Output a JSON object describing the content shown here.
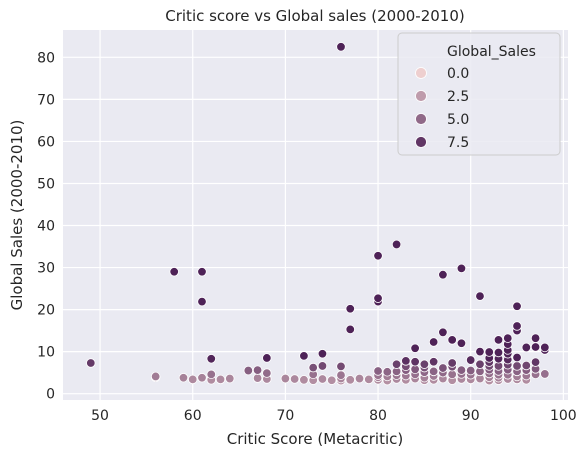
{
  "chart_data": {
    "type": "scatter",
    "title": "Critic score vs Global sales (2000-2010)",
    "xlabel": "Critic Score (Metacritic)",
    "ylabel": "Global Sales (2000-2010)",
    "xlim": [
      46,
      100.5
    ],
    "ylim": [
      -1.5,
      86.5
    ],
    "xticks": [
      50,
      60,
      70,
      80,
      90,
      100
    ],
    "yticks": [
      0,
      10,
      20,
      30,
      40,
      50,
      60,
      70,
      80
    ],
    "grid": true,
    "hue_variable": "Global_Sales",
    "hue_range": [
      0,
      8.5
    ],
    "palette": {
      "light": "#eecfcf",
      "dark": "#4e2257"
    },
    "legend": {
      "title": "Global_Sales",
      "placement": "top-right",
      "entries": [
        {
          "label": "0.0",
          "value": 0.0
        },
        {
          "label": "2.5",
          "value": 2.5
        },
        {
          "label": "5.0",
          "value": 5.0
        },
        {
          "label": "7.5",
          "value": 7.5
        }
      ]
    },
    "points": [
      [
        49,
        7.3
      ],
      [
        56,
        4.1
      ],
      [
        56,
        3.9
      ],
      [
        59,
        3.8
      ],
      [
        60,
        3.4
      ],
      [
        61,
        29.0
      ],
      [
        61,
        3.8
      ],
      [
        62,
        4.6
      ],
      [
        62,
        3.3
      ],
      [
        63,
        3.4
      ],
      [
        64,
        3.6
      ],
      [
        58,
        29.0
      ],
      [
        61,
        21.9
      ],
      [
        62,
        8.3
      ],
      [
        66,
        5.5
      ],
      [
        67,
        5.6
      ],
      [
        67,
        3.7
      ],
      [
        68,
        4.9
      ],
      [
        68,
        8.5
      ],
      [
        68,
        3.5
      ],
      [
        70,
        3.6
      ],
      [
        71,
        3.5
      ],
      [
        72,
        9.0
      ],
      [
        72,
        3.3
      ],
      [
        73,
        6.2
      ],
      [
        73,
        4.6
      ],
      [
        73,
        3.2
      ],
      [
        74,
        9.5
      ],
      [
        74,
        6.6
      ],
      [
        74,
        3.5
      ],
      [
        75,
        3.2
      ],
      [
        76,
        82.5
      ],
      [
        76,
        6.5
      ],
      [
        76,
        4.4
      ],
      [
        76,
        3.6
      ],
      [
        76,
        3.1
      ],
      [
        77,
        20.2
      ],
      [
        77,
        15.3
      ],
      [
        77,
        3.3
      ],
      [
        78,
        3.6
      ],
      [
        79,
        3.4
      ],
      [
        80,
        32.8
      ],
      [
        80,
        22.7
      ],
      [
        80,
        21.9
      ],
      [
        80,
        5.4
      ],
      [
        80,
        4.4
      ],
      [
        80,
        3.9
      ],
      [
        80,
        3.3
      ],
      [
        81,
        5.2
      ],
      [
        81,
        4.1
      ],
      [
        81,
        3.1
      ],
      [
        82,
        35.5
      ],
      [
        82,
        7.0
      ],
      [
        82,
        5.3
      ],
      [
        82,
        4.4
      ],
      [
        82,
        3.5
      ],
      [
        83,
        7.8
      ],
      [
        83,
        6.5
      ],
      [
        83,
        5.6
      ],
      [
        83,
        4.3
      ],
      [
        83,
        3.3
      ],
      [
        84,
        10.8
      ],
      [
        84,
        7.6
      ],
      [
        84,
        5.8
      ],
      [
        84,
        4.6
      ],
      [
        84,
        3.6
      ],
      [
        85,
        7.0
      ],
      [
        85,
        6.2
      ],
      [
        85,
        5.1
      ],
      [
        85,
        3.8
      ],
      [
        85,
        3.2
      ],
      [
        86,
        12.3
      ],
      [
        86,
        7.6
      ],
      [
        86,
        5.3
      ],
      [
        86,
        4.2
      ],
      [
        86,
        3.3
      ],
      [
        87,
        28.3
      ],
      [
        87,
        14.6
      ],
      [
        87,
        6.1
      ],
      [
        87,
        5.0
      ],
      [
        87,
        3.6
      ],
      [
        88,
        12.8
      ],
      [
        88,
        7.3
      ],
      [
        88,
        6.4
      ],
      [
        88,
        4.6
      ],
      [
        88,
        3.2
      ],
      [
        89,
        29.8
      ],
      [
        89,
        12.0
      ],
      [
        89,
        5.6
      ],
      [
        89,
        4.7
      ],
      [
        89,
        3.5
      ],
      [
        90,
        8.0
      ],
      [
        90,
        5.5
      ],
      [
        90,
        4.5
      ],
      [
        90,
        3.4
      ],
      [
        91,
        23.2
      ],
      [
        91,
        10.0
      ],
      [
        91,
        7.0
      ],
      [
        91,
        5.3
      ],
      [
        91,
        3.6
      ],
      [
        92,
        9.9
      ],
      [
        92,
        8.5
      ],
      [
        92,
        7.5
      ],
      [
        92,
        6.6
      ],
      [
        92,
        5.7
      ],
      [
        92,
        4.8
      ],
      [
        92,
        3.9
      ],
      [
        92,
        3.1
      ],
      [
        93,
        12.8
      ],
      [
        93,
        9.8
      ],
      [
        93,
        8.3
      ],
      [
        93,
        6.6
      ],
      [
        93,
        5.4
      ],
      [
        93,
        4.5
      ],
      [
        93,
        3.8
      ],
      [
        93,
        3.2
      ],
      [
        94,
        13.2
      ],
      [
        94,
        11.8
      ],
      [
        94,
        10.4
      ],
      [
        94,
        9.5
      ],
      [
        94,
        8.1
      ],
      [
        94,
        6.9
      ],
      [
        94,
        5.7
      ],
      [
        94,
        4.5
      ],
      [
        94,
        3.5
      ],
      [
        95,
        20.8
      ],
      [
        95,
        16.1
      ],
      [
        95,
        15.0
      ],
      [
        95,
        8.6
      ],
      [
        95,
        6.6
      ],
      [
        95,
        5.3
      ],
      [
        95,
        4.1
      ],
      [
        95,
        3.4
      ],
      [
        96,
        11.0
      ],
      [
        96,
        6.7
      ],
      [
        96,
        5.6
      ],
      [
        96,
        4.3
      ],
      [
        96,
        3.3
      ],
      [
        97,
        13.2
      ],
      [
        97,
        11.1
      ],
      [
        97,
        7.5
      ],
      [
        97,
        5.9
      ],
      [
        97,
        4.6
      ],
      [
        98,
        11.0
      ],
      [
        98,
        10.4
      ],
      [
        98,
        4.7
      ]
    ]
  }
}
